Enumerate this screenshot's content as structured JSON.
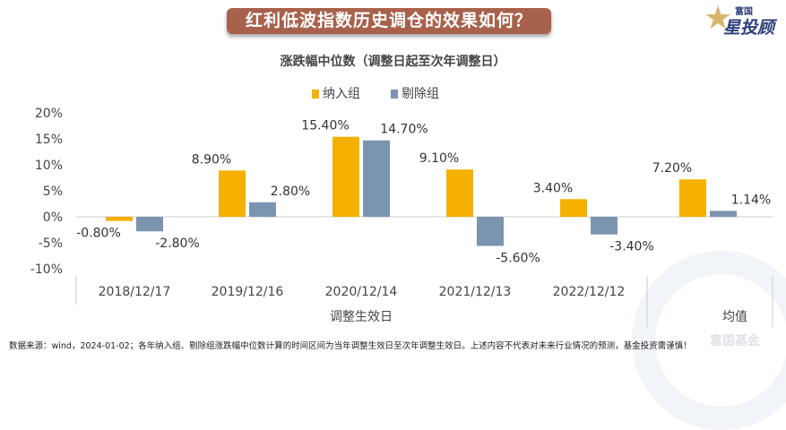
{
  "banner": {
    "title": "红利低波指数历史调仓的效果如何？"
  },
  "logo": {
    "top": "富国",
    "main": "星投顾",
    "icon": "star-icon"
  },
  "watermark": "富国基金",
  "footer": "数据来源：wind，2024-01-02；各年纳入组、剔除组涨跌幅中位数计算的时间区间为当年调整生效日至次年调整生效日。上述内容不代表对未来行业情况的预测，基金投资需谨慎！",
  "chart_data": {
    "type": "bar",
    "title": "涨跌幅中位数（调整日起至次年调整日）",
    "categories": [
      "2018/12/17",
      "2019/12/16",
      "2020/12/14",
      "2021/12/13",
      "2022/12/12",
      "均值"
    ],
    "series": [
      {
        "name": "纳入组",
        "color": "#F5B000",
        "values": [
          -0.8,
          8.9,
          15.4,
          9.1,
          3.4,
          7.2
        ],
        "labels": [
          "-0.80%",
          "8.90%",
          "15.40%",
          "9.10%",
          "3.40%",
          "7.20%"
        ]
      },
      {
        "name": "剔除组",
        "color": "#7B94AF",
        "values": [
          -2.8,
          2.8,
          14.7,
          -5.6,
          -3.4,
          1.14
        ],
        "labels": [
          "-2.80%",
          "2.80%",
          "14.70%",
          "-5.60%",
          "-3.40%",
          "1.14%"
        ]
      }
    ],
    "xlabel": "调整生效日",
    "xlabel2": "均值",
    "ylim": [
      -10,
      20
    ],
    "yticks": [
      "-10%",
      "-5%",
      "0%",
      "5%",
      "10%",
      "15%",
      "20%"
    ],
    "ytick_values": [
      -10,
      -5,
      0,
      5,
      10,
      15,
      20
    ],
    "legend": "top-center",
    "grid": false
  }
}
